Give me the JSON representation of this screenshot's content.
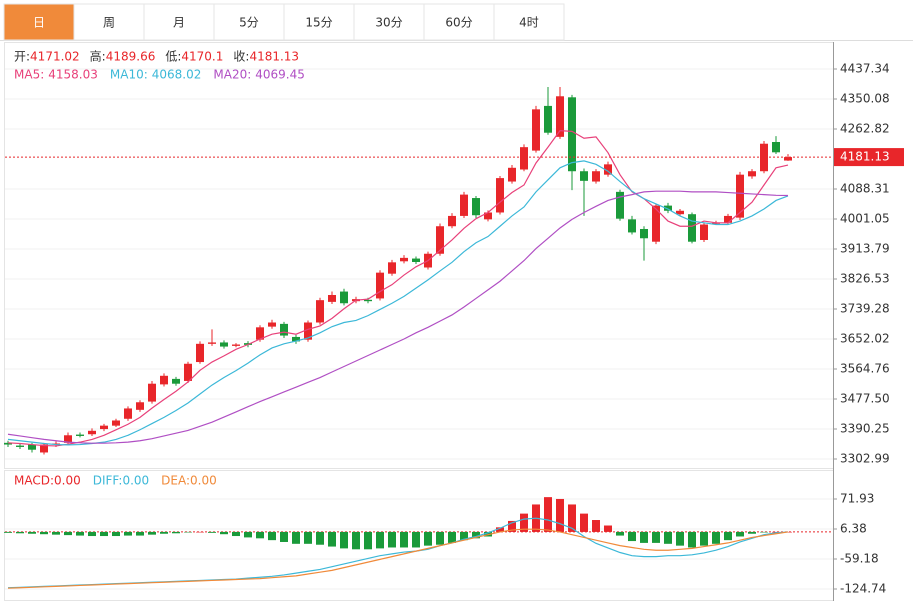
{
  "chart_data": {
    "type": "candlestick",
    "tabs": [
      "日",
      "周",
      "月",
      "5分",
      "15分",
      "30分",
      "60分",
      "4时"
    ],
    "active_tab": 0,
    "info_labels": [
      "开:",
      "高:",
      "低:",
      "收:"
    ],
    "up_color": "#e8262a",
    "down_color": "#1a9a3a",
    "ohlc": {
      "open": [
        3350,
        3342,
        3345,
        3322,
        3346,
        3350,
        3374,
        3375,
        3390,
        3400,
        3420,
        3446,
        3470,
        3520,
        3536,
        3530,
        3585,
        3638,
        3642,
        3632,
        3640,
        3650,
        3688,
        3696,
        3658,
        3650,
        3700,
        3760,
        3790,
        3762,
        3766,
        3770,
        3842,
        3878,
        3886,
        3860,
        3900,
        3980,
        4010,
        4062,
        4000,
        4020,
        4110,
        4145,
        4200,
        4330,
        4240,
        4355,
        4140,
        4110,
        4130,
        4080,
        4000,
        3972,
        3935,
        4040,
        4015,
        4015,
        3940,
        3988,
        3990,
        4005,
        4125,
        4140,
        4225,
        4171.02
      ],
      "high": [
        3356,
        3348,
        3350,
        3350,
        3354,
        3380,
        3380,
        3392,
        3405,
        3420,
        3456,
        3474,
        3530,
        3552,
        3542,
        3586,
        3645,
        3680,
        3648,
        3640,
        3646,
        3692,
        3708,
        3702,
        3664,
        3706,
        3772,
        3790,
        3798,
        3775,
        3772,
        3852,
        3882,
        3896,
        3892,
        3906,
        3988,
        4018,
        4080,
        4068,
        4026,
        4126,
        4158,
        4218,
        4330,
        4385,
        4385,
        4362,
        4148,
        4146,
        4168,
        4086,
        4010,
        3980,
        4046,
        4048,
        4030,
        4020,
        3990,
        3996,
        4016,
        4138,
        4146,
        4228,
        4242,
        4189.66
      ],
      "low": [
        3338,
        3332,
        3322,
        3316,
        3338,
        3344,
        3366,
        3370,
        3384,
        3396,
        3414,
        3440,
        3464,
        3514,
        3516,
        3524,
        3580,
        3632,
        3624,
        3628,
        3628,
        3644,
        3682,
        3655,
        3638,
        3644,
        3694,
        3754,
        3750,
        3756,
        3756,
        3764,
        3836,
        3872,
        3870,
        3854,
        3894,
        3974,
        4004,
        4004,
        3994,
        4014,
        4104,
        4140,
        4194,
        4246,
        4234,
        4085,
        4010,
        4104,
        4124,
        3996,
        3956,
        3880,
        3928,
        4018,
        4010,
        3930,
        3934,
        3984,
        3984,
        3998,
        4118,
        4134,
        4190,
        4170.1
      ],
      "close": [
        3345,
        3338,
        3330,
        3345,
        3348,
        3372,
        3370,
        3385,
        3400,
        3415,
        3450,
        3468,
        3522,
        3545,
        3522,
        3580,
        3638,
        3642,
        3630,
        3636,
        3635,
        3686,
        3700,
        3662,
        3645,
        3700,
        3765,
        3780,
        3756,
        3768,
        3762,
        3845,
        3875,
        3888,
        3876,
        3900,
        3980,
        4010,
        4072,
        4012,
        4020,
        4120,
        4150,
        4210,
        4320,
        4252,
        4358,
        4140,
        4112,
        4140,
        4160,
        4002,
        3962,
        3945,
        4040,
        4025,
        4025,
        3935,
        3985,
        3990,
        4010,
        4130,
        4140,
        4220,
        4195,
        4181.13
      ]
    },
    "ma": [
      {
        "name": "MA5:",
        "color": "#e8417a",
        "values": [
          3350,
          3348,
          3345,
          3342,
          3341,
          3346,
          3352,
          3360,
          3372,
          3388,
          3404,
          3424,
          3451,
          3476,
          3500,
          3527,
          3561,
          3585,
          3603,
          3622,
          3636,
          3652,
          3666,
          3672,
          3666,
          3680,
          3690,
          3712,
          3740,
          3765,
          3768,
          3790,
          3810,
          3838,
          3862,
          3880,
          3910,
          3940,
          3974,
          4002,
          4020,
          4050,
          4078,
          4100,
          4164,
          4210,
          4258,
          4256,
          4236,
          4240,
          4194,
          4130,
          4080,
          4060,
          4030,
          3995,
          3980,
          3980,
          3995,
          3990,
          3990,
          4020,
          4050,
          4100,
          4150,
          4158.03
        ]
      },
      {
        "name": "MA10:",
        "color": "#3cb8d8",
        "values": [
          3360,
          3356,
          3352,
          3348,
          3345,
          3344,
          3345,
          3348,
          3352,
          3360,
          3372,
          3388,
          3406,
          3424,
          3444,
          3466,
          3492,
          3518,
          3540,
          3560,
          3582,
          3606,
          3626,
          3638,
          3646,
          3655,
          3670,
          3688,
          3700,
          3706,
          3720,
          3738,
          3756,
          3776,
          3800,
          3824,
          3850,
          3875,
          3906,
          3932,
          3950,
          3980,
          4010,
          4036,
          4080,
          4115,
          4150,
          4165,
          4170,
          4160,
          4140,
          4110,
          4082,
          4060,
          4045,
          4030,
          4010,
          3995,
          3990,
          3985,
          3985,
          3995,
          4010,
          4030,
          4055,
          4068.02
        ]
      },
      {
        "name": "MA20:",
        "color": "#b04fc4",
        "values": [
          3375,
          3370,
          3365,
          3360,
          3356,
          3352,
          3350,
          3349,
          3349,
          3350,
          3352,
          3356,
          3362,
          3370,
          3378,
          3386,
          3398,
          3410,
          3425,
          3440,
          3455,
          3470,
          3484,
          3498,
          3512,
          3526,
          3540,
          3556,
          3572,
          3588,
          3604,
          3620,
          3636,
          3652,
          3670,
          3686,
          3704,
          3722,
          3745,
          3770,
          3795,
          3820,
          3850,
          3880,
          3915,
          3945,
          3975,
          4000,
          4020,
          4038,
          4055,
          4065,
          4072,
          4080,
          4082,
          4082,
          4082,
          4080,
          4080,
          4080,
          4078,
          4076,
          4074,
          4072,
          4070,
          4069.45
        ]
      }
    ],
    "ylim": [
      3276.81,
      4515.87
    ],
    "yticks": [
      4437.34,
      4350.08,
      4262.82,
      4088.31,
      4001.05,
      3913.79,
      3826.53,
      3739.28,
      3652.02,
      3564.76,
      {
        "value": 3477.5,
        "label": "3477.50"
      },
      3390.25,
      3302.99
    ],
    "grid": true,
    "macd": {
      "legend": [
        {
          "name": "MACD:",
          "value": "0.00",
          "color": "#e8262a"
        },
        {
          "name": "DIFF:",
          "value": "0.00",
          "color": "#3cb8d8"
        },
        {
          "name": "DEA:",
          "value": "0.00",
          "color": "#f08a3a"
        }
      ],
      "ylim": [
        -148.78,
        135.3
      ],
      "yticks": [
        71.93,
        6.38,
        -59.18,
        -124.74
      ],
      "hist": [
        -2,
        -3,
        -4,
        -5,
        -6,
        -7,
        -8,
        -9,
        -9,
        -9,
        -8,
        -8,
        -6,
        -4,
        -3,
        -1,
        0,
        -2,
        -5,
        -9,
        -12,
        -14,
        -18,
        -22,
        -26,
        -26,
        -28,
        -32,
        -36,
        -38,
        -38,
        -36,
        -34,
        -34,
        -34,
        -30,
        -28,
        -24,
        -18,
        -14,
        -10,
        10,
        24,
        40,
        60,
        76,
        72,
        60,
        40,
        26,
        14,
        -8,
        -20,
        -24,
        -24,
        -26,
        -30,
        -34,
        -30,
        -26,
        -18,
        -10,
        -4,
        -1,
        0,
        0
      ],
      "diff": [
        -122,
        -121,
        -120,
        -119,
        -118,
        -117,
        -116,
        -115,
        -114,
        -113,
        -112,
        -111,
        -110,
        -109,
        -108,
        -107,
        -106,
        -105,
        -104,
        -103,
        -101,
        -99,
        -97,
        -94,
        -90,
        -86,
        -82,
        -76,
        -70,
        -64,
        -58,
        -52,
        -48,
        -44,
        -42,
        -38,
        -30,
        -24,
        -16,
        -10,
        -2,
        8,
        20,
        28,
        30,
        26,
        18,
        8,
        -10,
        -25,
        -35,
        -45,
        -52,
        -54,
        -54,
        -52,
        -52,
        -50,
        -46,
        -40,
        -32,
        -22,
        -14,
        -6,
        -2,
        0
      ],
      "dea": [
        -123,
        -122,
        -121,
        -120,
        -119,
        -118,
        -117,
        -116,
        -115,
        -114,
        -113,
        -112,
        -111,
        -110,
        -109,
        -108,
        -107,
        -106,
        -105,
        -104,
        -103,
        -102,
        -100,
        -98,
        -96,
        -92,
        -88,
        -84,
        -78,
        -72,
        -66,
        -60,
        -54,
        -48,
        -42,
        -36,
        -30,
        -24,
        -18,
        -12,
        -6,
        0,
        4,
        6,
        6,
        4,
        0,
        -6,
        -12,
        -18,
        -24,
        -30,
        -34,
        -38,
        -40,
        -40,
        -38,
        -36,
        -32,
        -28,
        -24,
        -18,
        -12,
        -8,
        -4,
        0
      ]
    }
  }
}
